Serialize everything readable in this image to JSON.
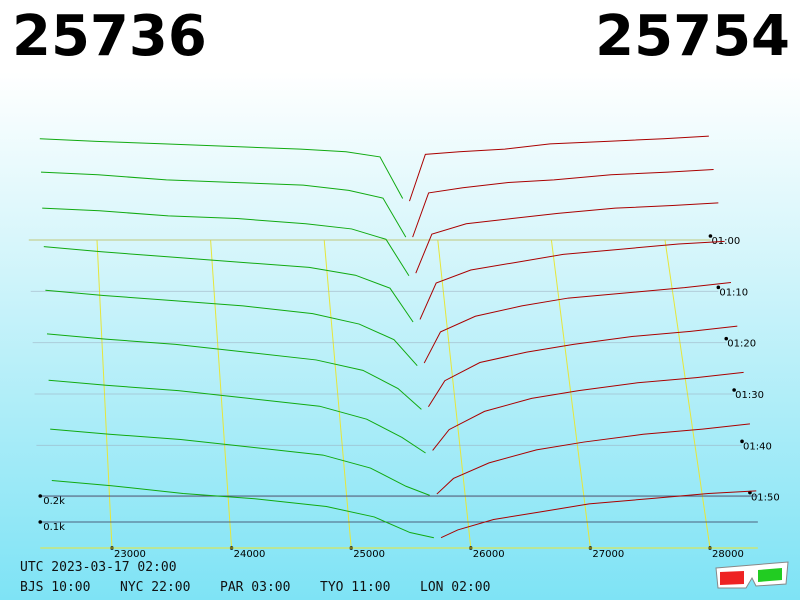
{
  "chart_data": {
    "type": "depth3d",
    "bid_price": "25736",
    "ask_price": "25754",
    "bid_color": "#11aa11",
    "ask_color": "#aa0000",
    "xlim": [
      22400,
      28400
    ],
    "xticks": [
      23000,
      24000,
      25000,
      26000,
      27000,
      28000
    ],
    "tlim": [
      60,
      120
    ],
    "tticks": [
      {
        "value": 60,
        "label": "01:00"
      },
      {
        "value": 70,
        "label": "01:10"
      },
      {
        "value": 80,
        "label": "01:20"
      },
      {
        "value": 90,
        "label": "01:30"
      },
      {
        "value": 100,
        "label": "01:40"
      },
      {
        "value": 110,
        "label": "01:50"
      }
    ],
    "zticks": [
      {
        "value": 100,
        "label": "0.1k"
      },
      {
        "value": 200,
        "label": "0.2k"
      }
    ],
    "bid_prices": [
      25700,
      25500,
      25200,
      24800,
      24200,
      23600,
      23000,
      22500
    ],
    "ask_prices": [
      25760,
      25900,
      26200,
      26600,
      27000,
      27500,
      28000,
      28400
    ],
    "rows": [
      {
        "t": 58,
        "bids": [
          120,
          280,
          300,
          310,
          320,
          330,
          340,
          350
        ],
        "asks": [
          110,
          290,
          300,
          310,
          330,
          340,
          350,
          360
        ]
      },
      {
        "t": 64,
        "bids": [
          90,
          240,
          270,
          290,
          300,
          310,
          330,
          340
        ],
        "asks": [
          90,
          260,
          280,
          300,
          310,
          330,
          340,
          350
        ]
      },
      {
        "t": 70,
        "bids": [
          60,
          200,
          240,
          260,
          280,
          290,
          310,
          320
        ],
        "asks": [
          70,
          220,
          260,
          280,
          300,
          320,
          330,
          340
        ]
      },
      {
        "t": 78,
        "bids": [
          40,
          170,
          220,
          250,
          270,
          290,
          310,
          330
        ],
        "asks": [
          50,
          190,
          240,
          270,
          300,
          320,
          340,
          350
        ]
      },
      {
        "t": 86,
        "bids": [
          30,
          130,
          190,
          230,
          260,
          280,
          300,
          320
        ],
        "asks": [
          40,
          160,
          220,
          260,
          290,
          310,
          330,
          350
        ]
      },
      {
        "t": 94,
        "bids": [
          20,
          100,
          170,
          210,
          240,
          270,
          290,
          310
        ],
        "asks": [
          30,
          130,
          200,
          240,
          270,
          300,
          320,
          340
        ]
      },
      {
        "t": 102,
        "bids": [
          10,
          70,
          140,
          190,
          220,
          250,
          270,
          290
        ],
        "asks": [
          20,
          100,
          170,
          220,
          250,
          280,
          300,
          320
        ]
      },
      {
        "t": 110,
        "bids": [
          5,
          40,
          110,
          160,
          190,
          220,
          240,
          260
        ],
        "asks": [
          10,
          70,
          130,
          180,
          210,
          240,
          260,
          280
        ]
      },
      {
        "t": 118,
        "bids": [
          0,
          20,
          80,
          120,
          150,
          170,
          200,
          220
        ],
        "asks": [
          0,
          30,
          70,
          100,
          130,
          150,
          170,
          180
        ]
      }
    ],
    "footer": {
      "utc": "UTC 2023-03-17 02:00",
      "cities": [
        "BJS 10:00",
        "NYC 22:00",
        "PAR 03:00",
        "TYO 11:00",
        "LON 02:00"
      ]
    }
  }
}
